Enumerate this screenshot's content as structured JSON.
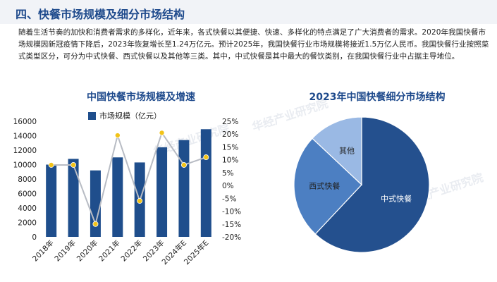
{
  "section_title": "四、快餐市场规模及细分市场结构",
  "paragraph": "随着生活节奏的加快和消费者需求的多样化，近年来，各式快餐以其便捷、快速、多样化的特点满足了广大消费者的需求。2020年我国快餐市场规模因新冠疫情下降后，2023年恢复增长至1.24万亿元。预计2025年，我国快餐行业市场规模将接近1.5万亿人民币。我国快餐行业按照菜式类型区分，可分为中式快餐、西式快餐以及其他等三类。其中，中式快餐是其中最大的餐饮类别，在我国快餐行业中占据主导地位。",
  "watermark": "华经产业研究院",
  "chart_data": [
    {
      "type": "bar",
      "title": "中国快餐市场规模及增速",
      "legend": "市场规模（亿元）",
      "legend_position": "top",
      "categories": [
        "2018年",
        "2019年",
        "2020年",
        "2021年",
        "2022年",
        "2023年",
        "2024年E",
        "2025年E"
      ],
      "series": [
        {
          "name": "市场规模（亿元）",
          "type": "bar",
          "axis": "left",
          "color": "#1f4e8c",
          "values": [
            10000,
            10800,
            9200,
            11000,
            10300,
            12400,
            13400,
            14900
          ]
        },
        {
          "type": "line",
          "axis": "right",
          "color": "#b8bcc4",
          "marker_color": "#f2c318",
          "values": [
            8.0,
            8.0,
            -15.0,
            19.5,
            -6.0,
            20.5,
            8.0,
            11.0
          ]
        }
      ],
      "y_left_ticks": [
        "16000",
        "14000",
        "12000",
        "10000",
        "8000",
        "6000",
        "4000",
        "2000",
        "0"
      ],
      "y_right_ticks": [
        "25%",
        "20%",
        "15%",
        "10%",
        "5%",
        "0%",
        "-5%",
        "-10%",
        "-15%",
        "-20%"
      ],
      "ylim_left": [
        0,
        16000
      ],
      "ylim_right": [
        -20,
        25
      ],
      "grid": false
    },
    {
      "type": "pie",
      "title": "2023年中国快餐细分市场结构",
      "labels": [
        "中式快餐",
        "西式快餐",
        "其他"
      ],
      "values": [
        62,
        25,
        13
      ],
      "colors": [
        "#24508e",
        "#4c7fc2",
        "#9ab9e4"
      ],
      "label_colors": [
        "#ffffff",
        "#222222",
        "#222222"
      ]
    }
  ]
}
